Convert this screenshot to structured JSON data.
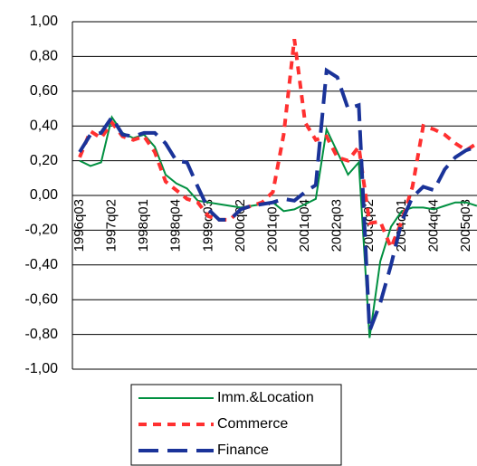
{
  "chart_data": {
    "type": "line",
    "categories": [
      "1996q03",
      null,
      null,
      "1997q02",
      null,
      null,
      "1998q01",
      null,
      null,
      "1998q04",
      null,
      null,
      "1999q03",
      null,
      null,
      "2000q02",
      null,
      null,
      "2001q01",
      null,
      null,
      "2001q04",
      null,
      null,
      "2002q03",
      null,
      null,
      "2003q02",
      null,
      null,
      "2004q01",
      null,
      null,
      "2004q04",
      null,
      null,
      "2005q03",
      null
    ],
    "series": [
      {
        "name": "Imm.&Location",
        "color": "#009040",
        "dash": "solid",
        "values": [
          0.2,
          0.17,
          0.19,
          0.45,
          0.36,
          0.33,
          0.35,
          0.28,
          0.12,
          0.07,
          0.04,
          -0.03,
          -0.04,
          -0.05,
          -0.06,
          -0.07,
          -0.06,
          -0.05,
          -0.04,
          -0.09,
          -0.08,
          -0.05,
          -0.02,
          0.38,
          0.25,
          0.12,
          0.19,
          -0.82,
          -0.38,
          -0.18,
          -0.09,
          -0.07,
          -0.07,
          -0.08,
          -0.06,
          -0.04,
          -0.04,
          -0.06
        ]
      },
      {
        "name": "Commerce",
        "color": "#ff3030",
        "dash": "short",
        "values": [
          0.22,
          0.37,
          0.33,
          0.42,
          0.34,
          0.32,
          0.34,
          0.25,
          0.08,
          0.03,
          -0.02,
          -0.04,
          -0.12,
          -0.14,
          -0.14,
          -0.08,
          -0.06,
          -0.04,
          0.02,
          0.35,
          0.9,
          0.42,
          0.32,
          0.34,
          0.22,
          0.2,
          0.28,
          -0.16,
          -0.15,
          -0.3,
          -0.15,
          0.05,
          0.4,
          0.38,
          0.35,
          0.3,
          0.26,
          0.3
        ]
      },
      {
        "name": "Finance",
        "color": "#1a3399",
        "dash": "long",
        "values": [
          0.25,
          0.35,
          0.36,
          0.45,
          0.35,
          0.34,
          0.36,
          0.36,
          0.3,
          0.2,
          0.19,
          0.05,
          -0.08,
          -0.14,
          -0.14,
          -0.08,
          -0.06,
          -0.05,
          -0.04,
          -0.02,
          -0.03,
          0.02,
          0.06,
          0.72,
          0.68,
          0.5,
          0.52,
          -0.78,
          -0.62,
          -0.4,
          -0.15,
          -0.01,
          0.05,
          0.03,
          0.15,
          0.22,
          0.26,
          0.28
        ]
      }
    ],
    "ylim": [
      -1,
      1
    ],
    "yticks": [
      {
        "value": -1,
        "label": "-1,00"
      },
      {
        "value": -0.8,
        "label": "-0,80"
      },
      {
        "value": -0.6,
        "label": "-0,60"
      },
      {
        "value": -0.4,
        "label": "-0,40"
      },
      {
        "value": -0.2,
        "label": "-0,20"
      },
      {
        "value": 0,
        "label": "0,00"
      },
      {
        "value": 0.2,
        "label": "0,20"
      },
      {
        "value": 0.4,
        "label": "0,40"
      },
      {
        "value": 0.6,
        "label": "0,60"
      },
      {
        "value": 0.8,
        "label": "0,80"
      },
      {
        "value": 1,
        "label": "1,00"
      }
    ],
    "grid": true,
    "legend": "bottom"
  }
}
